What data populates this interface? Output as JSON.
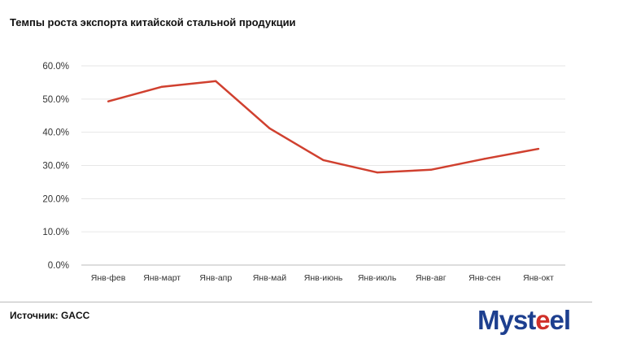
{
  "chart_data": {
    "type": "line",
    "title": "Темпы роста экспорта китайской стальной продукции",
    "categories": [
      "Янв-фев",
      "Янв-март",
      "Янв-апр",
      "Янв-май",
      "Янв-июнь",
      "Янв-июль",
      "Янв-авг",
      "Янв-сен",
      "Янв-окт"
    ],
    "series": [
      {
        "name": "Темпы роста экспорта",
        "values": [
          49.3,
          53.7,
          55.4,
          41.2,
          31.6,
          27.9,
          28.7,
          32.0,
          35.0
        ],
        "color": "#d0402f"
      }
    ],
    "yticks": [
      "0.0%",
      "10.0%",
      "20.0%",
      "30.0%",
      "40.0%",
      "50.0%",
      "60.0%"
    ],
    "ylim": [
      0,
      60
    ],
    "grid": true,
    "legend": "none",
    "xlabel": "",
    "ylabel": ""
  },
  "footer": {
    "source": "Источник: GACC",
    "logo": "Mysteel"
  }
}
